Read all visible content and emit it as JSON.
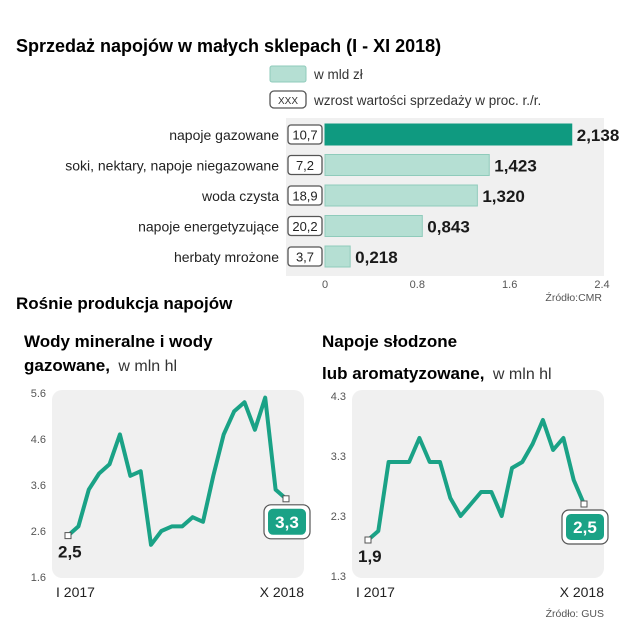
{
  "colors": {
    "bar_top": "#0f9a80",
    "bar_rest": "#b5dfd3",
    "bar_rest_border": "#8fcbbb",
    "line": "#1aa286",
    "panel": "#f0f0f0",
    "badge": "#1aa286"
  },
  "chart_data": [
    {
      "type": "bar",
      "orientation": "horizontal",
      "title": "Sprzedaż napojów w małych sklepach (I - XI 2018)",
      "legend": [
        {
          "key": "value",
          "label": "w mld zł"
        },
        {
          "key": "growth",
          "symbol": "XXX",
          "label": "wzrost wartości sprzedaży w proc. r./r."
        }
      ],
      "categories": [
        "napoje gazowane",
        "soki, nektary, napoje niegazowane",
        "woda czysta",
        "napoje energetyzujące",
        "herbaty mrożone"
      ],
      "values": [
        2.138,
        1.423,
        1.32,
        0.843,
        0.218
      ],
      "value_labels": [
        "2,138",
        "1,423",
        "1,320",
        "0,843",
        "0,218"
      ],
      "growth": [
        "10,7",
        "7,2",
        "18,9",
        "20,2",
        "3,7"
      ],
      "xlim": [
        0,
        2.4
      ],
      "xticks": [
        "0",
        "0.8",
        "1.6",
        "2.4"
      ],
      "source": "Źródło:CMR"
    },
    {
      "type": "line",
      "title_bold": "Wody mineralne i wody gazowane,",
      "title_unit": " w mln hl",
      "ylim": [
        1.6,
        5.6
      ],
      "yticks": [
        "5.6",
        "4.6",
        "3.6",
        "2.6",
        "1.6"
      ],
      "x_first": "I 2017",
      "x_last": "X 2018",
      "values": [
        2.5,
        2.7,
        3.5,
        3.85,
        4.05,
        4.7,
        3.8,
        3.9,
        2.3,
        2.6,
        2.7,
        2.7,
        2.9,
        2.8,
        3.8,
        4.7,
        5.2,
        5.4,
        4.8,
        5.5,
        3.5,
        3.3
      ],
      "first_label": "2,5",
      "last_label": "3,3"
    },
    {
      "type": "line",
      "title_bold": "Napoje słodzone lub aromatyzowane,",
      "title_unit": " w mln hl",
      "ylim": [
        1.3,
        4.3
      ],
      "yticks": [
        "4.3",
        "3.3",
        "2.3",
        "1.3"
      ],
      "x_first": "I 2017",
      "x_last": "X 2018",
      "values": [
        1.9,
        2.05,
        3.2,
        3.2,
        3.2,
        3.6,
        3.2,
        3.2,
        2.6,
        2.3,
        2.5,
        2.7,
        2.7,
        2.3,
        3.1,
        3.2,
        3.5,
        3.9,
        3.4,
        3.6,
        2.9,
        2.5
      ],
      "first_label": "1,9",
      "last_label": "2,5",
      "source": "Źródło: GUS"
    }
  ],
  "section2_title": "Rośnie produkcja napojów"
}
